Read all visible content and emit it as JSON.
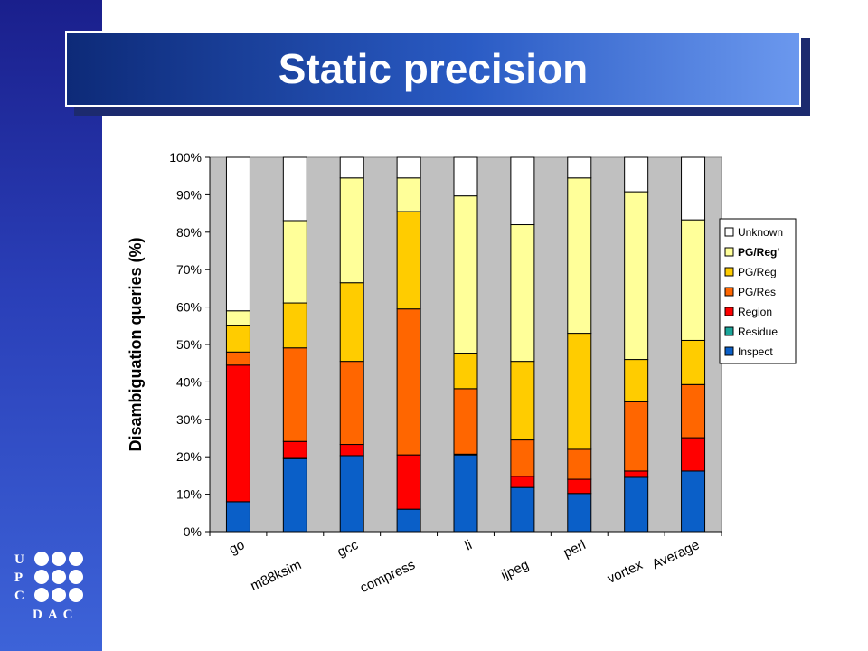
{
  "title": "Static precision",
  "logo": {
    "letters": [
      "U",
      "P",
      "C"
    ],
    "bottom": "DAC"
  },
  "chart_data": {
    "type": "bar",
    "stacked": true,
    "ylabel": "Disambiguation queries (%)",
    "ylim": [
      0,
      100
    ],
    "ytick_labels": [
      "0%",
      "10%",
      "20%",
      "30%",
      "40%",
      "50%",
      "60%",
      "70%",
      "80%",
      "90%",
      "100%"
    ],
    "grid": false,
    "legend_position": "right",
    "categories": [
      "go",
      "m88ksim",
      "gcc",
      "compress",
      "li",
      "ijpeg",
      "perl",
      "vortex",
      "Average"
    ],
    "series": [
      {
        "name": "Inspect",
        "color": "#0a5fc8",
        "values": [
          8,
          19.5,
          20.3,
          6,
          20.5,
          11.8,
          10.2,
          14.5,
          16.2
        ]
      },
      {
        "name": "Residue",
        "color": "#1aa59a",
        "values": [
          0,
          0.3,
          0,
          0,
          0.2,
          0,
          0,
          0,
          0
        ]
      },
      {
        "name": "Region",
        "color": "#ff0000",
        "values": [
          36.5,
          4.3,
          3,
          14.5,
          0,
          3,
          3.8,
          1.7,
          8.9
        ]
      },
      {
        "name": "PG/Res",
        "color": "#ff6600",
        "values": [
          3.5,
          25,
          22.2,
          39,
          17.5,
          9.7,
          8,
          18.5,
          14.2
        ]
      },
      {
        "name": "PG/Reg",
        "color": "#ffcc00",
        "values": [
          7,
          12,
          21,
          26,
          9.5,
          21,
          31,
          11.3,
          11.8
        ]
      },
      {
        "name": "PG/Reg'",
        "color": "#ffff99",
        "values": [
          4,
          22,
          28,
          9,
          42,
          36.5,
          41.5,
          44.8,
          32.2
        ]
      },
      {
        "name": "Unknown",
        "color": "#ffffff",
        "values": [
          41,
          16.9,
          5.5,
          5.5,
          10.3,
          18,
          5.5,
          9.2,
          16.7
        ]
      }
    ],
    "legend_order": [
      "Unknown",
      "PG/Reg'",
      "PG/Reg",
      "PG/Res",
      "Region",
      "Residue",
      "Inspect"
    ],
    "plot_background": "#c0c0c0"
  }
}
